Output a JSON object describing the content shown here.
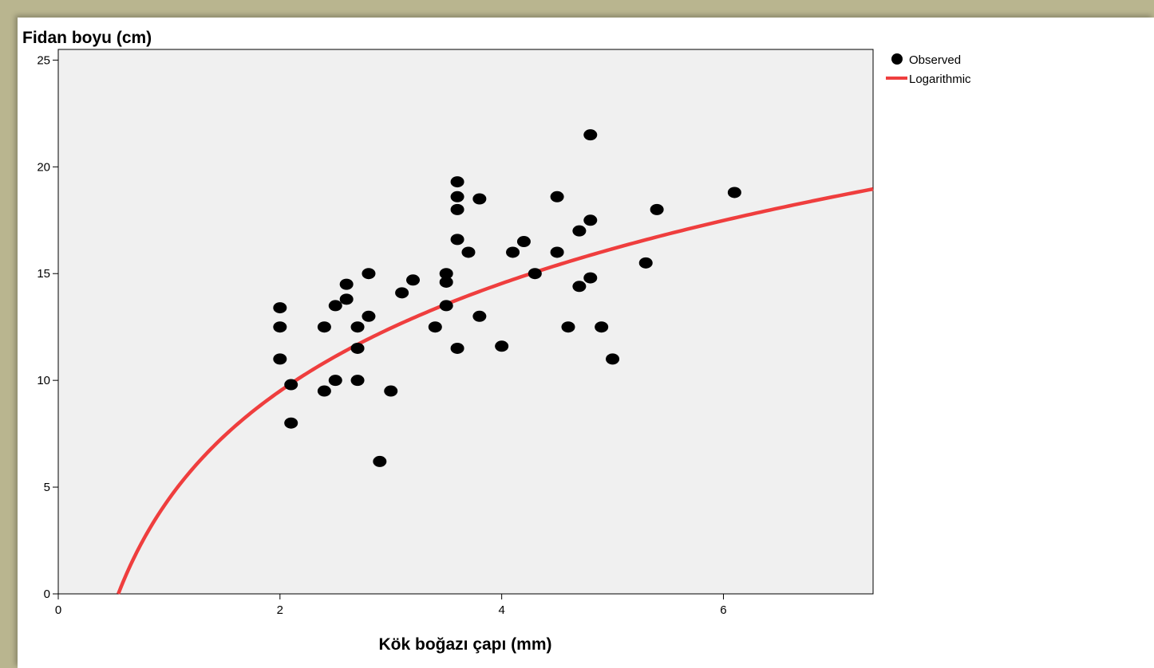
{
  "chart_data": {
    "type": "scatter",
    "title": "",
    "xlabel": "Kök boğazı çapı (mm)",
    "ylabel": "Fidan boyu (cm)",
    "xlim": [
      0,
      7.35
    ],
    "ylim": [
      0,
      25.5
    ],
    "x_ticks": [
      0,
      2,
      4,
      6
    ],
    "y_ticks": [
      0,
      5,
      10,
      15,
      20,
      25
    ],
    "grid": false,
    "legend_position": "outside-top-right",
    "plot_background": "#f0f0f0",
    "series": [
      {
        "name": "Observed",
        "kind": "scatter",
        "color": "#000000",
        "points": [
          [
            2.0,
            13.4
          ],
          [
            2.0,
            12.5
          ],
          [
            2.0,
            11.0
          ],
          [
            2.1,
            9.8
          ],
          [
            2.1,
            8.0
          ],
          [
            2.4,
            12.5
          ],
          [
            2.4,
            9.5
          ],
          [
            2.5,
            13.5
          ],
          [
            2.5,
            10.0
          ],
          [
            2.6,
            14.5
          ],
          [
            2.6,
            13.8
          ],
          [
            2.7,
            12.5
          ],
          [
            2.7,
            11.5
          ],
          [
            2.7,
            10.0
          ],
          [
            2.8,
            15.0
          ],
          [
            2.8,
            13.0
          ],
          [
            2.9,
            6.2
          ],
          [
            3.0,
            9.5
          ],
          [
            3.1,
            14.1
          ],
          [
            3.2,
            14.7
          ],
          [
            3.4,
            12.5
          ],
          [
            3.5,
            15.0
          ],
          [
            3.5,
            14.6
          ],
          [
            3.5,
            13.5
          ],
          [
            3.6,
            19.3
          ],
          [
            3.6,
            18.6
          ],
          [
            3.6,
            18.0
          ],
          [
            3.6,
            16.6
          ],
          [
            3.6,
            11.5
          ],
          [
            3.7,
            16.0
          ],
          [
            3.8,
            18.5
          ],
          [
            3.8,
            13.0
          ],
          [
            4.0,
            11.6
          ],
          [
            4.1,
            16.0
          ],
          [
            4.2,
            16.5
          ],
          [
            4.3,
            15.0
          ],
          [
            4.5,
            18.6
          ],
          [
            4.5,
            16.0
          ],
          [
            4.6,
            12.5
          ],
          [
            4.7,
            17.0
          ],
          [
            4.7,
            14.4
          ],
          [
            4.8,
            21.5
          ],
          [
            4.8,
            17.5
          ],
          [
            4.8,
            14.8
          ],
          [
            4.9,
            12.5
          ],
          [
            5.0,
            11.0
          ],
          [
            5.3,
            15.5
          ],
          [
            5.4,
            18.0
          ],
          [
            6.1,
            18.8
          ]
        ]
      },
      {
        "name": "Logarithmic",
        "kind": "line",
        "color": "#ef3e3e",
        "model": {
          "b0": 4.46,
          "b1": 7.27
        }
      }
    ]
  }
}
